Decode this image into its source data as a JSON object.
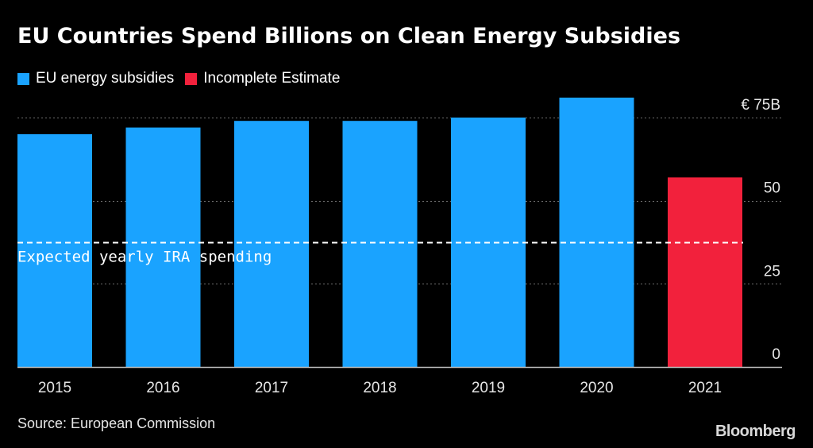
{
  "header": {
    "title": "EU Countries Spend Billions on Clean Energy Subsidies"
  },
  "footer": {
    "source": "Source: European Commission",
    "brand": "Bloomberg"
  },
  "colors": {
    "subsidy": "#1aa3ff",
    "estimate": "#f2213c",
    "background": "#000000",
    "grid": "#6e6e6e"
  },
  "chart_data": {
    "type": "bar",
    "title": "EU Countries Spend Billions on Clean Energy Subsidies",
    "xlabel": "",
    "ylabel": "",
    "ylim": [
      0,
      75
    ],
    "y_ticks": [
      {
        "value": 75,
        "label": "€ 75B"
      },
      {
        "value": 50,
        "label": "50"
      },
      {
        "value": 25,
        "label": "25"
      },
      {
        "value": 0,
        "label": "0"
      }
    ],
    "grid": true,
    "legend": [
      {
        "name": "EU energy subsidies",
        "color": "#1aa3ff"
      },
      {
        "name": "Incomplete Estimate",
        "color": "#f2213c"
      }
    ],
    "categories": [
      "2015",
      "2016",
      "2017",
      "2018",
      "2019",
      "2020",
      "2021"
    ],
    "series": [
      {
        "name": "EU energy subsidies",
        "values": [
          70,
          72,
          74,
          74,
          75,
          81,
          null
        ]
      },
      {
        "name": "Incomplete Estimate",
        "values": [
          null,
          null,
          null,
          null,
          null,
          null,
          57
        ]
      }
    ],
    "reference_line": {
      "value": 37.5,
      "label": "Expected yearly IRA spending"
    }
  }
}
